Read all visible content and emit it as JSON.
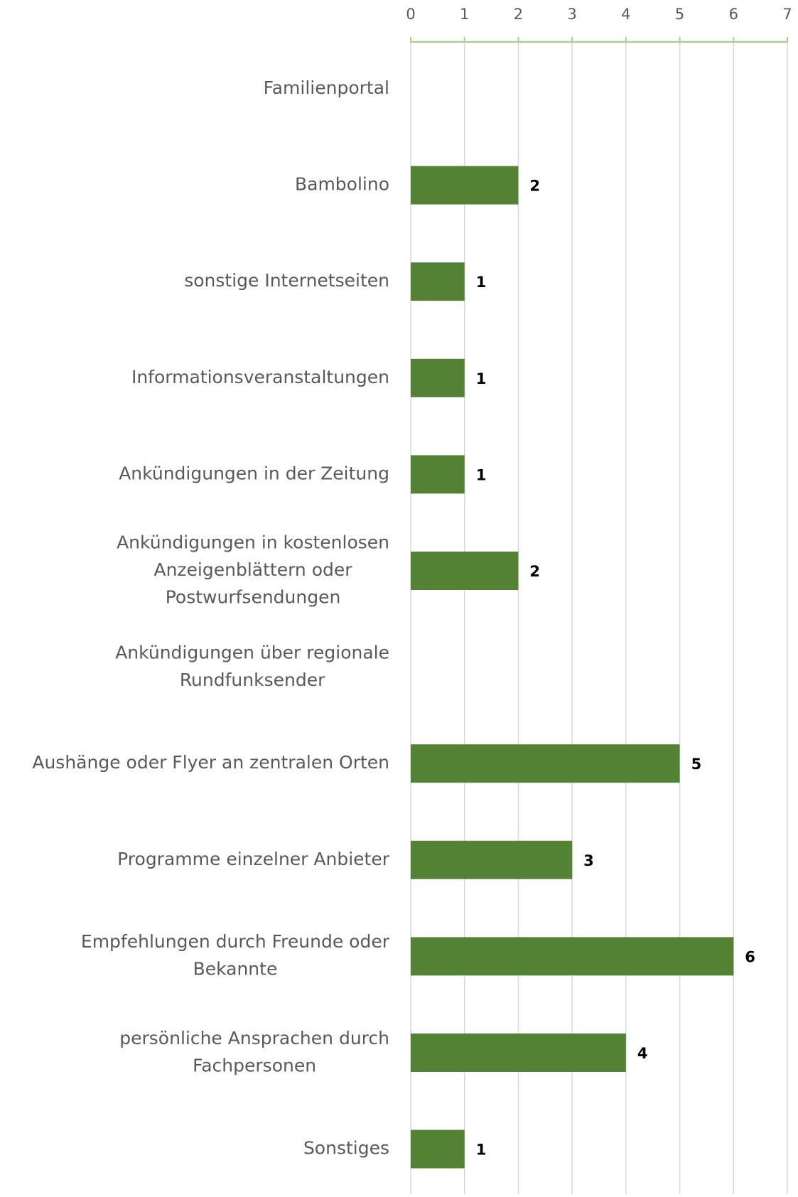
{
  "chart_data": {
    "type": "barh",
    "categories": [
      [
        "Familienportal"
      ],
      [
        "Bambolino"
      ],
      [
        "sonstige Internetseiten"
      ],
      [
        "Informationsveranstaltungen"
      ],
      [
        "Ankündigungen in der Zeitung"
      ],
      [
        "Ankündigungen in kostenlosen",
        "Anzeigenblättern oder",
        "Postwurfsendungen"
      ],
      [
        "Ankündigungen über regionale",
        "Rundfunksender"
      ],
      [
        "Aushänge oder Flyer an zentralen Orten"
      ],
      [
        "Programme einzelner Anbieter"
      ],
      [
        "Empfehlungen durch Freunde oder",
        "Bekannte"
      ],
      [
        "persönliche Ansprachen durch",
        "Fachpersonen"
      ],
      [
        "Sonstiges"
      ]
    ],
    "values": [
      0,
      2,
      1,
      1,
      1,
      2,
      0,
      5,
      3,
      6,
      4,
      1
    ],
    "value_labels": [
      null,
      "2",
      "1",
      "1",
      "1",
      "2",
      null,
      "5",
      "3",
      "6",
      "4",
      "1"
    ],
    "color": "#548235",
    "xlim": [
      0,
      7
    ],
    "xticks": [
      0,
      1,
      2,
      3,
      4,
      5,
      6,
      7
    ],
    "grid": true
  }
}
